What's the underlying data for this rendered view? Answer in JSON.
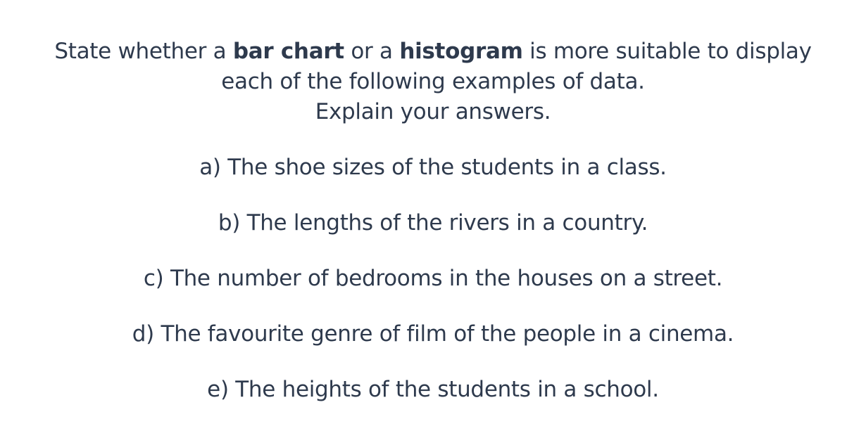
{
  "question": {
    "prefix": "State whether a ",
    "term1": "bar chart",
    "middle": " or a ",
    "term2": "histogram",
    "suffix": " is more suitable to display",
    "line2": "each of the following examples of data.",
    "line3": "Explain your answers."
  },
  "items": [
    "a) The shoe sizes of the students in a class.",
    "b) The lengths of the rivers in a country.",
    "c) The number of bedrooms in the houses on a street.",
    "d) The favourite genre of film of the people in a cinema.",
    "e) The heights of the students in a school."
  ]
}
